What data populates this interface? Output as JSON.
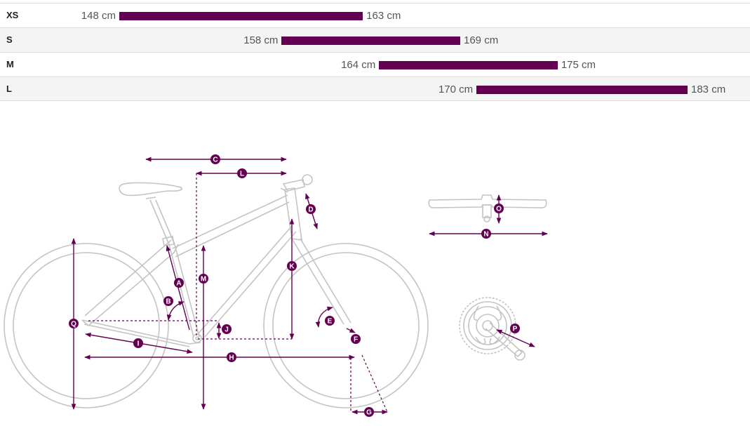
{
  "size_chart": {
    "axis_min_cm": 139,
    "axis_max_cm": 189,
    "rows": [
      {
        "size": "XS",
        "min": 148,
        "max": 163,
        "min_label": "148 cm",
        "max_label": "163 cm"
      },
      {
        "size": "S",
        "min": 158,
        "max": 169,
        "min_label": "158 cm",
        "max_label": "169 cm"
      },
      {
        "size": "M",
        "min": 164,
        "max": 175,
        "min_label": "164 cm",
        "max_label": "175 cm"
      },
      {
        "size": "L",
        "min": 170,
        "max": 183,
        "min_label": "170 cm",
        "max_label": "183 cm"
      }
    ]
  },
  "colors": {
    "accent": "#630052",
    "line": "#c4c4c4",
    "text": "#555555"
  },
  "diagram": {
    "letters": {
      "A": "A",
      "B": "B",
      "C": "C",
      "D": "D",
      "E": "E",
      "F": "F",
      "G": "G",
      "H": "H",
      "I": "I",
      "J": "J",
      "K": "K",
      "L": "L",
      "M": "M",
      "N": "N",
      "O": "O",
      "P": "P",
      "Q": "Q"
    }
  }
}
